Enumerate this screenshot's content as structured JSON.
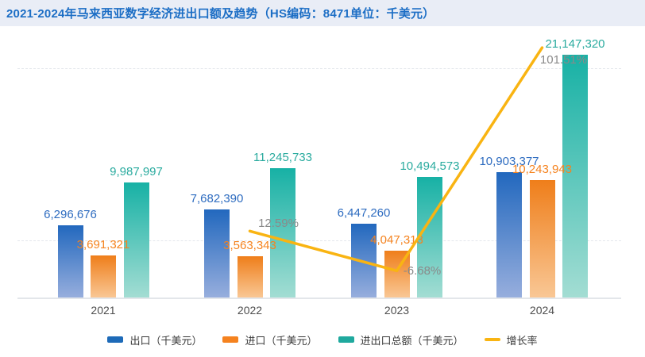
{
  "header": {
    "title": "2021-2024年马来西亚数字经济进出口额及趋势（HS编码：8471单位：千美元）"
  },
  "chart_data": {
    "type": "bar",
    "subtype": "grouped-bars-with-growth-line",
    "title": "2021-2024年马来西亚数字经济进出口额及趋势（HS编码：8471单位：千美元）",
    "categories": [
      "2021",
      "2022",
      "2023",
      "2024"
    ],
    "series": [
      {
        "name": "出口（千美元）",
        "type": "bar",
        "color_top": "#2268be",
        "color_bottom": "#97aedd",
        "label_color": "#2e6cc0",
        "values": [
          6296676,
          7682390,
          6447260,
          10903377
        ],
        "labels": [
          "6,296,676",
          "7,682,390",
          "6,447,260",
          "10,903,377"
        ]
      },
      {
        "name": "进口（千美元）",
        "type": "bar",
        "color_top": "#ef7e1a",
        "color_bottom": "#f9c795",
        "label_color": "#f5831f",
        "values": [
          3691321,
          3563343,
          4047313,
          10243943
        ],
        "labels": [
          "3,691,321",
          "3,563,343",
          "4,047,313",
          "10,243,943"
        ]
      },
      {
        "name": "进出口总额（千美元）",
        "type": "bar",
        "color_top": "#17b1a5",
        "color_bottom": "#a3ddd3",
        "label_color": "#2aab9f",
        "values": [
          9987997,
          11245733,
          10494573,
          21147320
        ],
        "labels": [
          "9,987,997",
          "11,245,733",
          "10,494,573",
          "21,147,320"
        ]
      },
      {
        "name": "增长率",
        "type": "line",
        "color": "#f9b412",
        "label_color": "#8a8a8a",
        "values": [
          null,
          12.59,
          -6.68,
          101.51
        ],
        "labels": [
          "",
          "12.59%",
          "-6.68%",
          "101.51%"
        ]
      }
    ],
    "xlabel": "",
    "ylabel": "",
    "y_axis": {
      "min": 0,
      "max": 25000000,
      "visible_gridlines": [
        5000000,
        20000000
      ],
      "labels_shown": false
    },
    "secondary_y_axis": {
      "unit": "%",
      "labels_shown": false
    },
    "legend_position": "bottom",
    "grid": "dashed-horizontal"
  },
  "x_axis": {
    "labels": [
      "2021",
      "2022",
      "2023",
      "2024"
    ]
  },
  "legend": {
    "items": [
      {
        "label": "出口（千美元）",
        "color": "#1d6ab8",
        "shape": "rect"
      },
      {
        "label": "进口（千美元）",
        "color": "#f5821f",
        "shape": "rect"
      },
      {
        "label": "进出口总额（千美元）",
        "color": "#1fa99e",
        "shape": "rect"
      },
      {
        "label": "增长率",
        "color": "#f9b412",
        "shape": "line"
      }
    ]
  }
}
